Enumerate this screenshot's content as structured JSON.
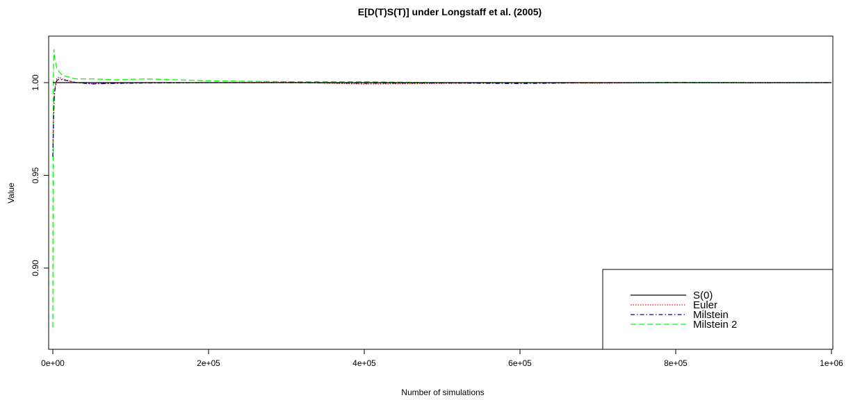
{
  "chart_data": {
    "type": "line",
    "title": "E[D(T)S(T)] under Longstaff et al. (2005)",
    "xlabel": "Number of simulations",
    "ylabel": "Value",
    "xlim": [
      0,
      1000000
    ],
    "ylim": [
      0.865,
      1.025
    ],
    "x_ticks": [
      0,
      200000,
      400000,
      600000,
      800000,
      1000000
    ],
    "x_tick_labels": [
      "0e+00",
      "2e+05",
      "4e+05",
      "6e+05",
      "8e+05",
      "1e+06"
    ],
    "y_ticks": [
      0.9,
      0.95,
      1.0
    ],
    "y_tick_labels": [
      "0.90",
      "0.95",
      "1.00"
    ],
    "grid": false,
    "legend_position": "bottom-right",
    "series": [
      {
        "name": "S(0)",
        "color": "#000000",
        "dash": "solid",
        "x": [
          0,
          1000000
        ],
        "y": [
          1.0,
          1.0
        ]
      },
      {
        "name": "Euler",
        "color": "#ff0000",
        "dash": "dotted",
        "x": [
          0,
          500,
          1000,
          2000,
          3000,
          5000,
          8000,
          12000,
          20000,
          30000,
          50000,
          80000,
          120000,
          200000,
          300000,
          400000,
          500000,
          600000,
          700000,
          800000,
          900000,
          1000000
        ],
        "y": [
          0.965,
          0.975,
          0.985,
          0.994,
          0.998,
          1.002,
          1.003,
          1.002,
          1.001,
          1.0,
          0.9995,
          0.9997,
          1.0,
          1.0,
          1.0003,
          0.9992,
          0.9996,
          1.0,
          0.9997,
          1.0,
          0.9998,
          1.0
        ]
      },
      {
        "name": "Milstein",
        "color": "#00008b",
        "dash": "dashdot",
        "x": [
          0,
          500,
          1000,
          2000,
          3000,
          5000,
          8000,
          12000,
          20000,
          30000,
          50000,
          80000,
          120000,
          200000,
          300000,
          400000,
          500000,
          600000,
          700000,
          800000,
          900000,
          1000000
        ],
        "y": [
          0.96,
          0.97,
          0.982,
          0.993,
          0.997,
          1.001,
          1.002,
          1.0015,
          1.001,
          1.0,
          0.9993,
          0.9996,
          0.9998,
          1.0,
          1.0,
          0.9997,
          0.9998,
          0.9995,
          1.0,
          1.0,
          1.0,
          1.0
        ]
      },
      {
        "name": "Milstein 2",
        "color": "#00ff00",
        "dash": "dashed",
        "x": [
          0,
          300,
          700,
          1000,
          1500,
          2000,
          3000,
          5000,
          8000,
          12000,
          20000,
          30000,
          50000,
          80000,
          120000,
          160000,
          200000,
          300000,
          400000,
          500000,
          600000,
          700000,
          800000,
          900000,
          1000000
        ],
        "y": [
          0.868,
          0.95,
          1.0,
          1.012,
          1.018,
          1.015,
          1.012,
          1.008,
          1.006,
          1.004,
          1.003,
          1.002,
          1.002,
          1.0015,
          1.002,
          1.0015,
          1.001,
          1.0005,
          1.0005,
          1.0,
          1.0,
          0.9998,
          1.0002,
          1.0,
          1.0
        ]
      }
    ]
  }
}
